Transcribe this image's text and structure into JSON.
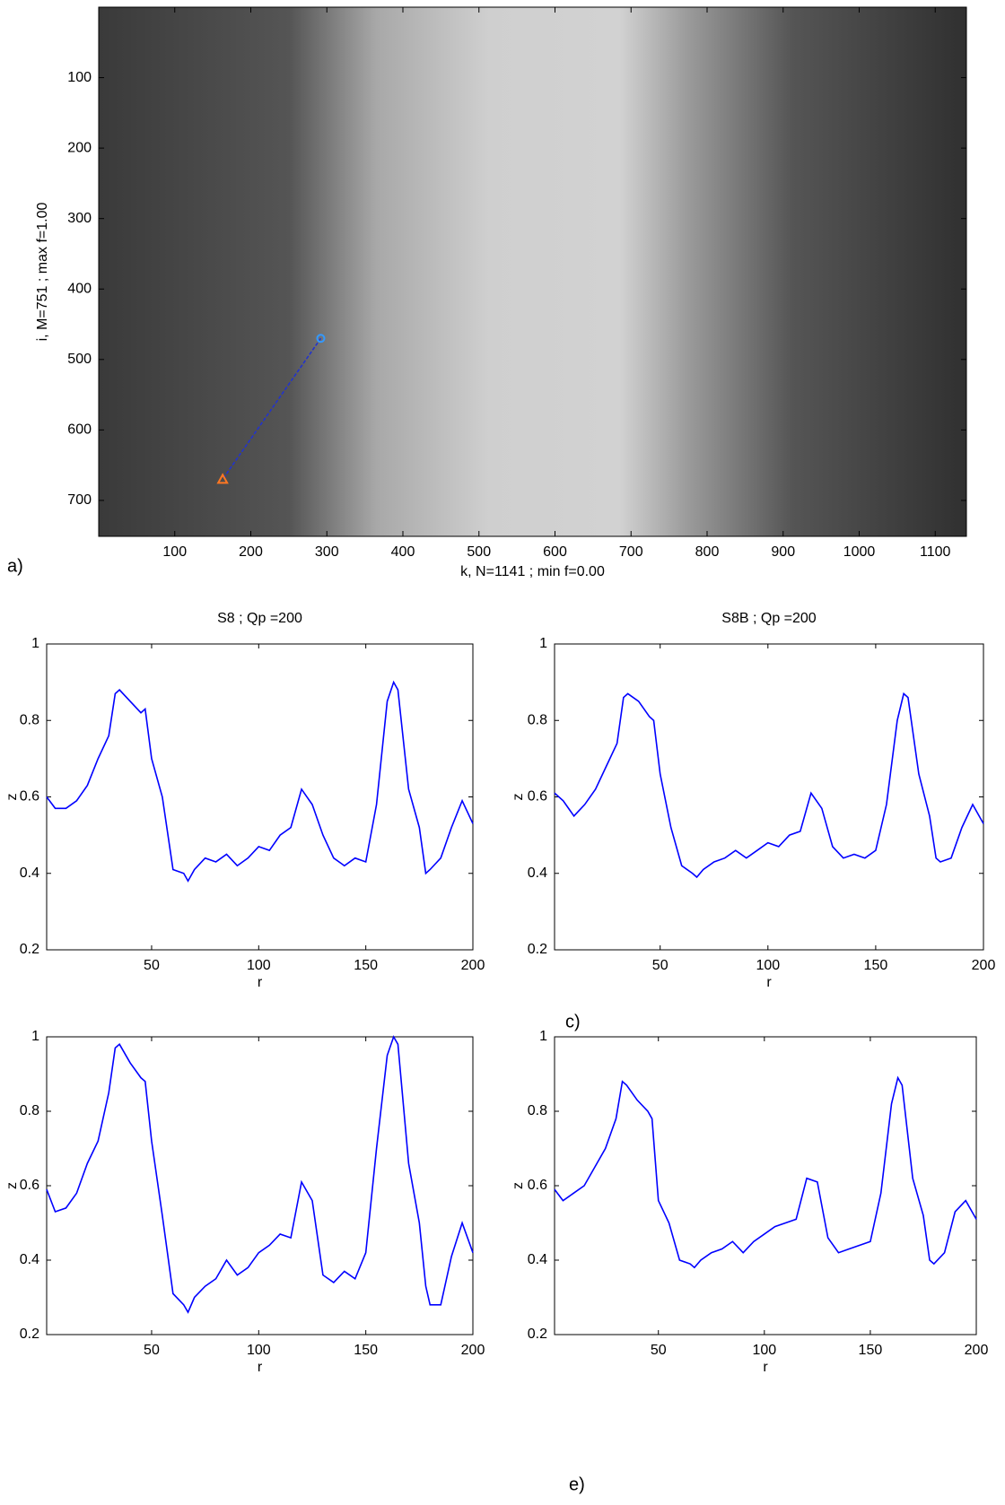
{
  "chart_data": [
    {
      "type": "image",
      "panel_label": "a)",
      "xlabel": "k, N=1141 ; min f=0.00",
      "ylabel": "i, M=751 ; max f=1.00",
      "xlim": [
        0,
        1141
      ],
      "ylim": [
        751,
        0
      ],
      "xticks": [
        100,
        200,
        300,
        400,
        500,
        600,
        700,
        800,
        900,
        1000,
        1100
      ],
      "yticks": [
        100,
        200,
        300,
        400,
        500,
        600,
        700
      ],
      "trace": {
        "x": [
          292,
          163
        ],
        "y": [
          470,
          670
        ],
        "color": "#2233cc",
        "start_color": "#3399ff",
        "end_color": "#ff7722"
      }
    },
    {
      "type": "line",
      "title": "S8 ; Qp =200",
      "xlabel": "r",
      "ylabel": "z",
      "xlim": [
        1,
        200
      ],
      "ylim": [
        0.2,
        1
      ],
      "xticks": [
        50,
        100,
        150,
        200
      ],
      "yticks": [
        0.2,
        0.4,
        0.6,
        0.8,
        1
      ],
      "color": "#0000ff",
      "x": [
        1,
        5,
        10,
        15,
        20,
        25,
        30,
        33,
        35,
        40,
        45,
        47,
        50,
        55,
        60,
        65,
        67,
        70,
        75,
        80,
        85,
        90,
        95,
        100,
        105,
        110,
        115,
        120,
        125,
        130,
        135,
        140,
        145,
        150,
        155,
        160,
        163,
        165,
        170,
        175,
        178,
        180,
        185,
        190,
        195,
        200
      ],
      "values": [
        0.6,
        0.57,
        0.57,
        0.59,
        0.63,
        0.7,
        0.76,
        0.87,
        0.88,
        0.85,
        0.82,
        0.83,
        0.7,
        0.6,
        0.41,
        0.4,
        0.38,
        0.41,
        0.44,
        0.43,
        0.45,
        0.42,
        0.44,
        0.47,
        0.46,
        0.5,
        0.52,
        0.62,
        0.58,
        0.5,
        0.44,
        0.42,
        0.44,
        0.43,
        0.58,
        0.85,
        0.9,
        0.88,
        0.62,
        0.52,
        0.4,
        0.41,
        0.44,
        0.52,
        0.59,
        0.53
      ]
    },
    {
      "type": "line",
      "title": "S8B ; Qp =200",
      "panel_label": "c)",
      "xlabel": "r",
      "ylabel": "z",
      "xlim": [
        1,
        200
      ],
      "ylim": [
        0.2,
        1
      ],
      "xticks": [
        50,
        100,
        150,
        200
      ],
      "yticks": [
        0.2,
        0.4,
        0.6,
        0.8,
        1
      ],
      "color": "#0000ff",
      "x": [
        1,
        5,
        10,
        15,
        20,
        25,
        30,
        33,
        35,
        40,
        45,
        47,
        50,
        55,
        60,
        65,
        67,
        70,
        75,
        80,
        85,
        90,
        95,
        100,
        105,
        110,
        115,
        120,
        125,
        130,
        135,
        140,
        145,
        150,
        155,
        160,
        163,
        165,
        170,
        175,
        178,
        180,
        185,
        190,
        195,
        200
      ],
      "values": [
        0.61,
        0.59,
        0.55,
        0.58,
        0.62,
        0.68,
        0.74,
        0.86,
        0.87,
        0.85,
        0.81,
        0.8,
        0.66,
        0.52,
        0.42,
        0.4,
        0.39,
        0.41,
        0.43,
        0.44,
        0.46,
        0.44,
        0.46,
        0.48,
        0.47,
        0.5,
        0.51,
        0.61,
        0.57,
        0.47,
        0.44,
        0.45,
        0.44,
        0.46,
        0.58,
        0.8,
        0.87,
        0.86,
        0.66,
        0.55,
        0.44,
        0.43,
        0.44,
        0.52,
        0.58,
        0.53
      ]
    },
    {
      "type": "line",
      "xlabel": "r",
      "ylabel": "z",
      "xlim": [
        1,
        200
      ],
      "ylim": [
        0.2,
        1
      ],
      "xticks": [
        50,
        100,
        150,
        200
      ],
      "yticks": [
        0.2,
        0.4,
        0.6,
        0.8,
        1
      ],
      "color": "#0000ff",
      "x": [
        1,
        5,
        10,
        15,
        20,
        25,
        30,
        33,
        35,
        40,
        45,
        47,
        50,
        55,
        60,
        65,
        67,
        70,
        75,
        80,
        85,
        90,
        95,
        100,
        105,
        110,
        115,
        120,
        125,
        130,
        135,
        140,
        145,
        150,
        155,
        160,
        163,
        165,
        170,
        175,
        178,
        180,
        185,
        190,
        195,
        200
      ],
      "values": [
        0.59,
        0.53,
        0.54,
        0.58,
        0.66,
        0.72,
        0.85,
        0.97,
        0.98,
        0.93,
        0.89,
        0.88,
        0.72,
        0.52,
        0.31,
        0.28,
        0.26,
        0.3,
        0.33,
        0.35,
        0.4,
        0.36,
        0.38,
        0.42,
        0.44,
        0.47,
        0.46,
        0.61,
        0.56,
        0.36,
        0.34,
        0.37,
        0.35,
        0.42,
        0.7,
        0.95,
        1.0,
        0.98,
        0.66,
        0.5,
        0.33,
        0.28,
        0.28,
        0.41,
        0.5,
        0.42
      ]
    },
    {
      "type": "line",
      "panel_label": "e)",
      "xlabel": "r",
      "ylabel": "z",
      "xlim": [
        1,
        200
      ],
      "ylim": [
        0.2,
        1
      ],
      "xticks": [
        50,
        100,
        150,
        200
      ],
      "yticks": [
        0.2,
        0.4,
        0.6,
        0.8,
        1
      ],
      "color": "#0000ff",
      "x": [
        1,
        5,
        10,
        15,
        20,
        25,
        30,
        33,
        35,
        40,
        45,
        47,
        50,
        55,
        60,
        65,
        67,
        70,
        75,
        80,
        85,
        90,
        95,
        100,
        105,
        110,
        115,
        120,
        125,
        130,
        135,
        140,
        145,
        150,
        155,
        160,
        163,
        165,
        170,
        175,
        178,
        180,
        185,
        190,
        195,
        200
      ],
      "values": [
        0.59,
        0.56,
        0.58,
        0.6,
        0.65,
        0.7,
        0.78,
        0.88,
        0.87,
        0.83,
        0.8,
        0.78,
        0.56,
        0.5,
        0.4,
        0.39,
        0.38,
        0.4,
        0.42,
        0.43,
        0.45,
        0.42,
        0.45,
        0.47,
        0.49,
        0.5,
        0.51,
        0.62,
        0.61,
        0.46,
        0.42,
        0.43,
        0.44,
        0.45,
        0.58,
        0.82,
        0.89,
        0.87,
        0.62,
        0.52,
        0.4,
        0.39,
        0.42,
        0.53,
        0.56,
        0.51
      ]
    }
  ]
}
